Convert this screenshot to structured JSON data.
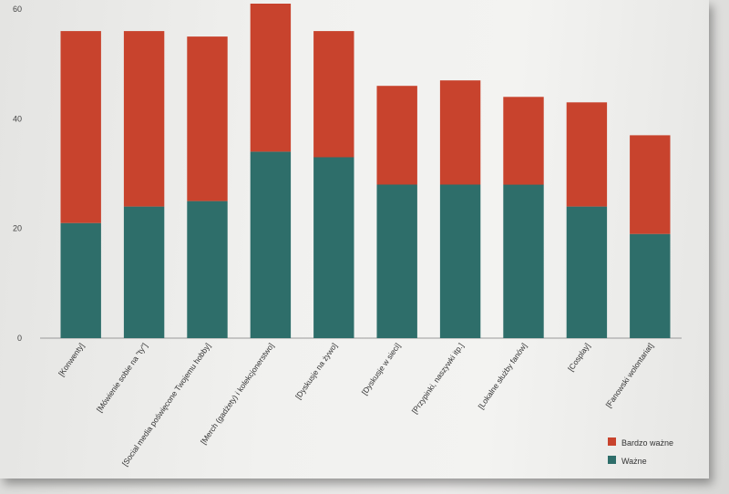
{
  "chart_data": {
    "type": "bar",
    "stacked": true,
    "title": "",
    "xlabel": "",
    "ylabel": "",
    "ylim": [
      0,
      60
    ],
    "yticks": [
      0,
      20,
      40,
      60
    ],
    "grid": false,
    "legend_position": "bottom-right",
    "categories": [
      "[Konwenty]",
      "[Mówienie sobie na \"ty\"]",
      "[Social media poświęcone Twojemu hobby]",
      "[Merch (gadżety) i kolekcjonerstwo]",
      "[Dyskusje na żywo]",
      "[Dyskusje w sieci]",
      "[Przypinki, naszywki itp.]",
      "[Lokalne służby fanów]",
      "[Cosplay]",
      "[Fanowski wolontariat]"
    ],
    "series": [
      {
        "name": "Ważne",
        "color": "#2e6e6a",
        "values": [
          21,
          24,
          25,
          34,
          33,
          28,
          28,
          28,
          24,
          19
        ]
      },
      {
        "name": "Bardzo ważne",
        "color": "#c8432d",
        "values": [
          35,
          32,
          30,
          27,
          23,
          18,
          19,
          16,
          19,
          18
        ]
      }
    ],
    "legend": [
      "Bardzo ważne",
      "Ważne"
    ]
  }
}
